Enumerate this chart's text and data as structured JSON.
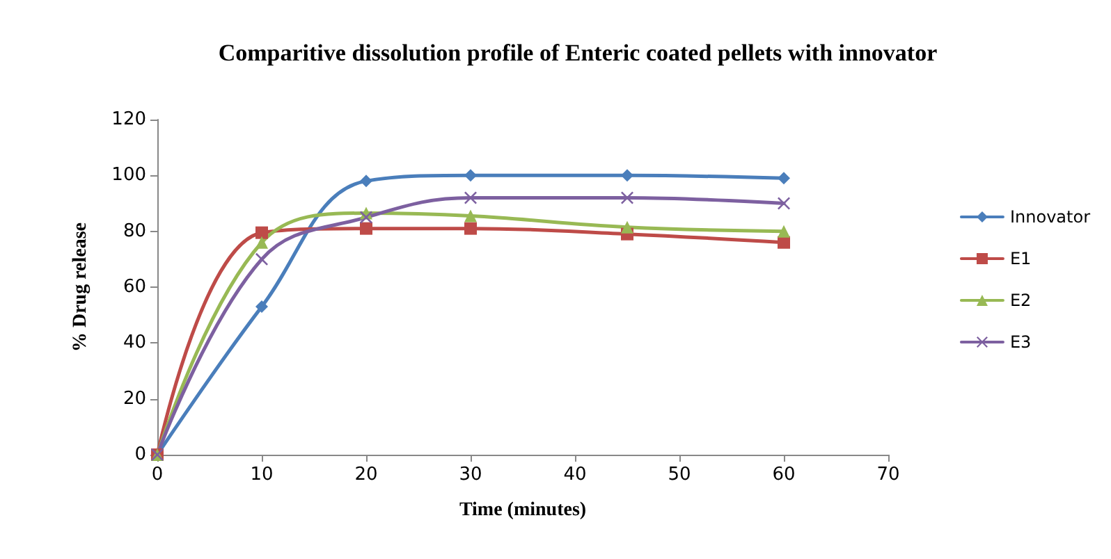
{
  "chart_data": {
    "type": "line",
    "title": "Comparitive dissolution profile of Enteric coated pellets with innovator",
    "xlabel": "Time (minutes)",
    "ylabel": "% Drug release",
    "x": [
      0,
      10,
      20,
      30,
      45,
      60
    ],
    "series": [
      {
        "name": "Innovator",
        "color": "#4a7ebb",
        "marker": "diamond",
        "values": [
          0,
          53,
          98,
          100,
          100,
          99
        ]
      },
      {
        "name": "E1",
        "color": "#be4b48",
        "marker": "square",
        "values": [
          0,
          79.5,
          81,
          81,
          79,
          76
        ]
      },
      {
        "name": "E2",
        "color": "#98b954",
        "marker": "triangle",
        "values": [
          0,
          76,
          86.5,
          85.5,
          81.5,
          80
        ]
      },
      {
        "name": "E3",
        "color": "#7d60a0",
        "marker": "cross",
        "values": [
          0,
          70,
          85,
          92,
          92,
          90
        ]
      }
    ],
    "xlim": [
      0,
      70
    ],
    "xticks": [
      0,
      10,
      20,
      30,
      40,
      50,
      60,
      70
    ],
    "ylim": [
      0,
      120
    ],
    "yticks": [
      0,
      20,
      40,
      60,
      80,
      100,
      120
    ],
    "grid": false,
    "legend": "right",
    "line_style": "solid"
  }
}
